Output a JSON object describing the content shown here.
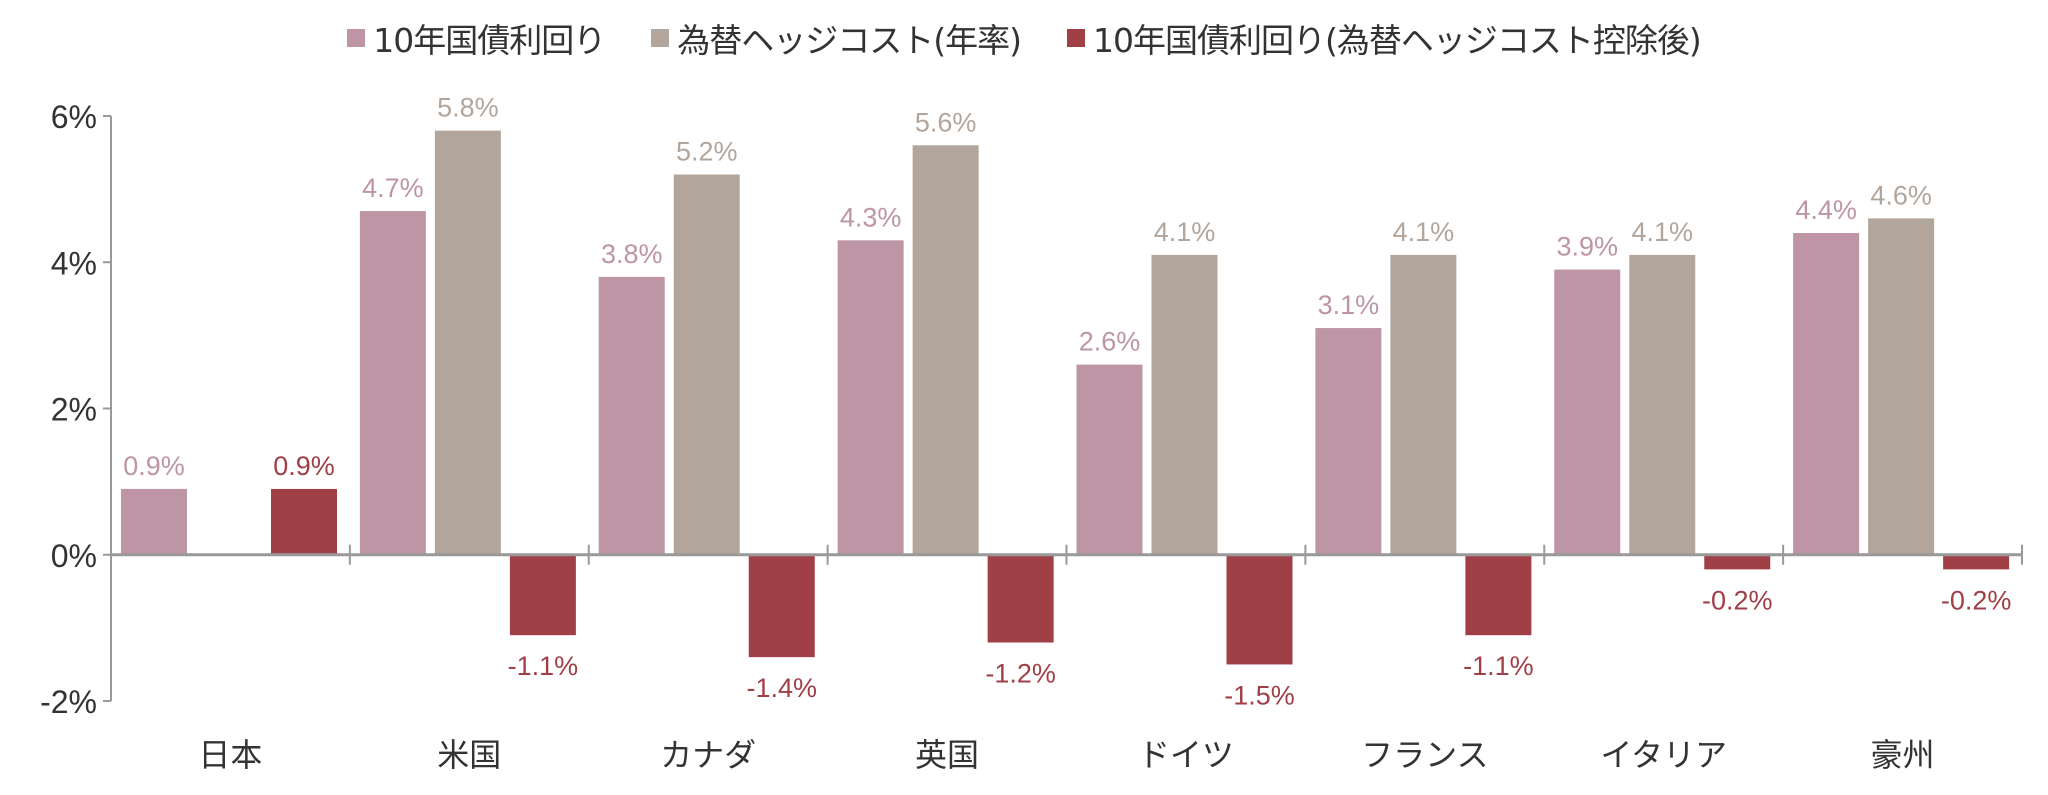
{
  "chart_data": {
    "type": "bar",
    "title": "",
    "xlabel": "",
    "ylabel": "",
    "ylim": [
      -2,
      6
    ],
    "yticks": [
      -2,
      0,
      2,
      4,
      6
    ],
    "ytick_labels": [
      "-2%",
      "0%",
      "2%",
      "4%",
      "6%"
    ],
    "categories": [
      "日本",
      "米国",
      "カナダ",
      "英国",
      "ドイツ",
      "フランス",
      "イタリア",
      "豪州"
    ],
    "legend_position": "top",
    "series": [
      {
        "name": "10年国債利回り",
        "color": "#BD95A5",
        "values": [
          0.9,
          4.7,
          3.8,
          4.3,
          2.6,
          3.1,
          3.9,
          4.4
        ],
        "labels": [
          "0.9%",
          "4.7%",
          "3.8%",
          "4.3%",
          "2.6%",
          "3.1%",
          "3.9%",
          "4.4%"
        ]
      },
      {
        "name": "為替ヘッジコスト(年率)",
        "color": "#B2A69C",
        "values": [
          null,
          5.8,
          5.2,
          5.6,
          4.1,
          4.1,
          4.1,
          4.6
        ],
        "labels": [
          null,
          "5.8%",
          "5.2%",
          "5.6%",
          "4.1%",
          "4.1%",
          "4.1%",
          "4.6%"
        ]
      },
      {
        "name": "10年国債利回り(為替ヘッジコスト控除後)",
        "color": "#A13F47",
        "values": [
          0.9,
          -1.1,
          -1.4,
          -1.2,
          -1.5,
          -1.1,
          -0.2,
          -0.2
        ],
        "labels": [
          "0.9%",
          "-1.1%",
          "-1.4%",
          "-1.2%",
          "-1.5%",
          "-1.1%",
          "-0.2%",
          "-0.2%"
        ]
      }
    ]
  }
}
